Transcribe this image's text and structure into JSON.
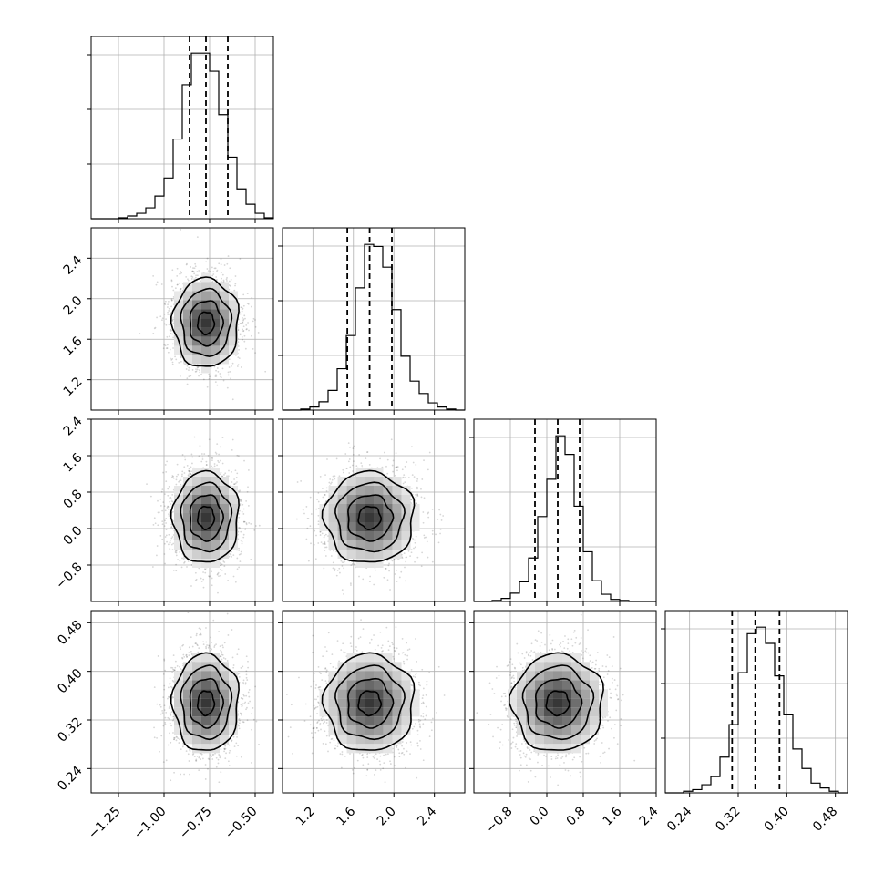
{
  "chart_data": {
    "type": "corner",
    "grid": true,
    "n_params": 4,
    "params": [
      {
        "range": [
          -1.4,
          -0.4
        ],
        "ticks": [
          -1.25,
          -1.0,
          -0.75,
          -0.5
        ],
        "tick_labels": [
          "−1.25",
          "−1.00",
          "−0.75",
          "−0.50"
        ],
        "quantiles": [
          -0.86,
          -0.77,
          -0.65
        ],
        "hist_bins": [
          -1.4,
          -1.35,
          -1.3,
          -1.25,
          -1.2,
          -1.15,
          -1.1,
          -1.05,
          -1.0,
          -0.95,
          -0.9,
          -0.85,
          -0.8,
          -0.75,
          -0.7,
          -0.65,
          -0.6,
          -0.55,
          -0.5,
          -0.45,
          -0.4
        ],
        "hist_counts": [
          0,
          0,
          0,
          1,
          3,
          6,
          12,
          25,
          45,
          88,
          148,
          183,
          183,
          163,
          115,
          68,
          33,
          16,
          6,
          1
        ],
        "hist_max": 183
      },
      {
        "range": [
          0.9,
          2.7
        ],
        "ticks": [
          1.2,
          1.6,
          2.0,
          2.4
        ],
        "tick_labels": [
          "1.2",
          "1.6",
          "2.0",
          "2.4"
        ],
        "quantiles": [
          1.54,
          1.76,
          1.98
        ],
        "hist_bins": [
          0.9,
          0.99,
          1.08,
          1.17,
          1.26,
          1.35,
          1.44,
          1.53,
          1.62,
          1.71,
          1.8,
          1.89,
          1.98,
          2.07,
          2.16,
          2.25,
          2.34,
          2.43,
          2.52,
          2.61,
          2.7
        ],
        "hist_counts": [
          0,
          0,
          1,
          3,
          8,
          19,
          40,
          72,
          118,
          160,
          158,
          138,
          97,
          52,
          28,
          16,
          7,
          3,
          1,
          0
        ],
        "hist_max": 160
      },
      {
        "range": [
          -1.6,
          2.4
        ],
        "ticks": [
          -0.8,
          0.0,
          0.8,
          1.6,
          2.4
        ],
        "tick_labels": [
          "−0.8",
          "0.0",
          "0.8",
          "1.6",
          "2.4"
        ],
        "quantiles": [
          -0.26,
          0.24,
          0.72
        ],
        "hist_bins": [
          -1.6,
          -1.4,
          -1.2,
          -1.0,
          -0.8,
          -0.6,
          -0.4,
          -0.2,
          0.0,
          0.2,
          0.4,
          0.6,
          0.8,
          1.0,
          1.2,
          1.4,
          1.6,
          1.8,
          2.0,
          2.2,
          2.4
        ],
        "hist_counts": [
          0,
          0,
          1,
          3,
          8,
          19,
          42,
          82,
          118,
          160,
          142,
          92,
          48,
          20,
          7,
          2,
          1,
          0,
          0,
          0
        ],
        "hist_max": 160
      },
      {
        "range": [
          0.2,
          0.5
        ],
        "ticks": [
          0.24,
          0.32,
          0.4,
          0.48
        ],
        "tick_labels": [
          "0.24",
          "0.32",
          "0.40",
          "0.48"
        ],
        "quantiles": [
          0.31,
          0.348,
          0.388
        ],
        "hist_bins": [
          0.2,
          0.215,
          0.23,
          0.245,
          0.26,
          0.275,
          0.29,
          0.305,
          0.32,
          0.335,
          0.35,
          0.365,
          0.38,
          0.395,
          0.41,
          0.425,
          0.44,
          0.455,
          0.47,
          0.485,
          0.5
        ],
        "hist_counts": [
          0,
          0,
          1,
          2,
          5,
          10,
          22,
          42,
          74,
          98,
          102,
          92,
          72,
          48,
          27,
          15,
          6,
          3,
          1,
          0
        ],
        "hist_max": 102
      }
    ],
    "panels_2d": [
      {
        "row": 1,
        "col": 0,
        "center": [
          -0.77,
          1.76
        ],
        "sigma": [
          0.09,
          0.22
        ],
        "contour_sigmas": [
          0.5,
          1.0,
          1.5,
          2.0
        ],
        "n_points": 2600
      },
      {
        "row": 2,
        "col": 0,
        "center": [
          -0.77,
          0.24
        ],
        "sigma": [
          0.09,
          0.5
        ],
        "contour_sigmas": [
          0.5,
          1.0,
          1.5,
          2.0
        ],
        "n_points": 2600
      },
      {
        "row": 2,
        "col": 1,
        "center": [
          1.76,
          0.24
        ],
        "sigma": [
          0.22,
          0.5
        ],
        "contour_sigmas": [
          0.5,
          1.0,
          1.5,
          2.0
        ],
        "n_points": 2600
      },
      {
        "row": 3,
        "col": 0,
        "center": [
          -0.77,
          0.348
        ],
        "sigma": [
          0.09,
          0.04
        ],
        "contour_sigmas": [
          0.5,
          1.0,
          1.5,
          2.0
        ],
        "n_points": 2600
      },
      {
        "row": 3,
        "col": 1,
        "center": [
          1.76,
          0.348
        ],
        "sigma": [
          0.22,
          0.04
        ],
        "contour_sigmas": [
          0.5,
          1.0,
          1.5,
          2.0
        ],
        "n_points": 2600
      },
      {
        "row": 3,
        "col": 2,
        "center": [
          0.24,
          0.348
        ],
        "sigma": [
          0.5,
          0.04
        ],
        "contour_sigmas": [
          0.5,
          1.0,
          1.5,
          2.0
        ],
        "n_points": 2600
      }
    ],
    "ytick_params": [
      1,
      2,
      3
    ],
    "xtick_params": [
      0,
      1,
      2,
      3
    ]
  },
  "colors": {
    "line": "#000000",
    "grid": "#b0b0b0",
    "scatter": "#000000",
    "background": "#ffffff"
  }
}
